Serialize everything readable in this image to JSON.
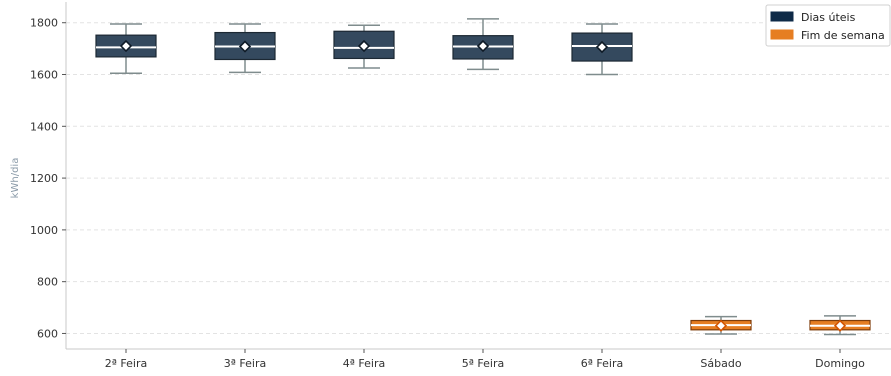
{
  "chart_data": {
    "type": "box",
    "title": "",
    "xlabel": "",
    "ylabel": "kWh/dia",
    "ylim": [
      540,
      1880
    ],
    "yticks": [
      600,
      800,
      1000,
      1200,
      1400,
      1600,
      1800
    ],
    "grid": "horizontal dashed",
    "legend_position": "top-right",
    "categories": [
      "2ª Feira",
      "3ª Feira",
      "4ª Feira",
      "5ª Feira",
      "6ª Feira",
      "Sábado",
      "Domingo"
    ],
    "groups": [
      "weekday",
      "weekday",
      "weekday",
      "weekday",
      "weekday",
      "weekend",
      "weekend"
    ],
    "boxes": [
      {
        "whisker_low": 1605,
        "q1": 1668,
        "median": 1705,
        "q3": 1752,
        "whisker_high": 1795,
        "mean": 1710
      },
      {
        "whisker_low": 1608,
        "q1": 1658,
        "median": 1708,
        "q3": 1762,
        "whisker_high": 1795,
        "mean": 1708
      },
      {
        "whisker_low": 1625,
        "q1": 1662,
        "median": 1703,
        "q3": 1767,
        "whisker_high": 1790,
        "mean": 1710
      },
      {
        "whisker_low": 1620,
        "q1": 1660,
        "median": 1708,
        "q3": 1750,
        "whisker_high": 1815,
        "mean": 1710
      },
      {
        "whisker_low": 1600,
        "q1": 1652,
        "median": 1710,
        "q3": 1760,
        "whisker_high": 1795,
        "mean": 1706
      },
      {
        "whisker_low": 598,
        "q1": 614,
        "median": 632,
        "q3": 650,
        "whisker_high": 665,
        "mean": 630
      },
      {
        "whisker_low": 596,
        "q1": 614,
        "median": 630,
        "q3": 650,
        "whisker_high": 668,
        "mean": 630
      }
    ],
    "series": [
      {
        "name": "Dias úteis",
        "group": "weekday",
        "color": "#34495e"
      },
      {
        "name": "Fim de semana",
        "group": "weekend",
        "color": "#e67e22"
      }
    ],
    "whisker_color": "#7f8c8d",
    "median_color": "#ffffff",
    "mean_marker_fill": "#ffffff"
  }
}
